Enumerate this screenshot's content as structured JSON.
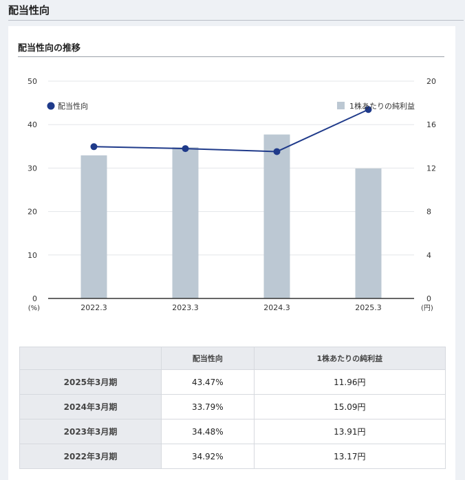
{
  "page": {
    "title": "配当性向"
  },
  "section": {
    "title": "配当性向の推移"
  },
  "chart_data": {
    "type": "bar+line",
    "categories": [
      "2022.3",
      "2023.3",
      "2024.3",
      "2025.3"
    ],
    "series": [
      {
        "name": "1株あたりの純利益",
        "type": "bar",
        "axis": "right",
        "values": [
          13.17,
          13.91,
          15.09,
          11.96
        ],
        "color": "#bcc8d3"
      },
      {
        "name": "配当性向",
        "type": "line",
        "axis": "left",
        "values": [
          34.92,
          34.48,
          33.79,
          43.47
        ],
        "color": "#1f3a8a"
      }
    ],
    "y_left": {
      "ticks": [
        0,
        10,
        20,
        30,
        40,
        50
      ],
      "ylim": [
        0,
        50
      ],
      "unit": "(%)"
    },
    "y_right": {
      "ticks": [
        0,
        4,
        8,
        12,
        16,
        20
      ],
      "ylim": [
        0,
        20
      ],
      "unit": "(円)"
    },
    "grid": true,
    "legend": "top"
  },
  "table": {
    "headers": [
      "",
      "配当性向",
      "1株あたりの純利益"
    ],
    "rows": [
      {
        "period": "2025年3月期",
        "payout": "43.47%",
        "eps": "11.96円"
      },
      {
        "period": "2024年3月期",
        "payout": "33.79%",
        "eps": "15.09円"
      },
      {
        "period": "2023年3月期",
        "payout": "34.48%",
        "eps": "13.91円"
      },
      {
        "period": "2022年3月期",
        "payout": "34.92%",
        "eps": "13.17円"
      }
    ]
  }
}
